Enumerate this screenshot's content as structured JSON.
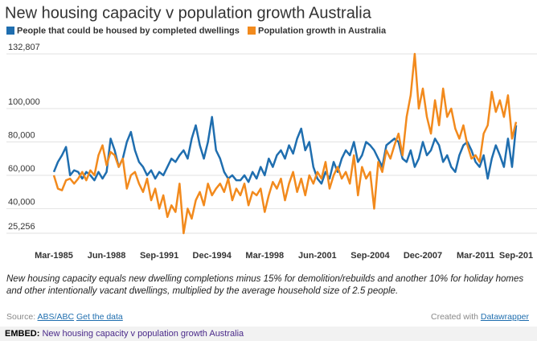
{
  "chart_data": {
    "type": "line",
    "title": "New housing capacity v population growth Australia",
    "categories": [
      "Mar-1985",
      null,
      null,
      null,
      null,
      null,
      null,
      null,
      null,
      null,
      null,
      null,
      null,
      "Jun-1988",
      null,
      null,
      null,
      null,
      null,
      null,
      null,
      null,
      null,
      null,
      null,
      null,
      "Sep-1991",
      null,
      null,
      null,
      null,
      null,
      null,
      null,
      null,
      null,
      null,
      null,
      null,
      "Dec-1994",
      null,
      null,
      null,
      null,
      null,
      null,
      null,
      null,
      null,
      null,
      null,
      null,
      "Mar-1998",
      null,
      null,
      null,
      null,
      null,
      null,
      null,
      null,
      null,
      null,
      null,
      null,
      "Jun-2001",
      null,
      null,
      null,
      null,
      null,
      null,
      null,
      null,
      null,
      null,
      null,
      null,
      "Sep-2004",
      null,
      null,
      null,
      null,
      null,
      null,
      null,
      null,
      null,
      null,
      null,
      null,
      "Dec-2007",
      null,
      null,
      null,
      null,
      null,
      null,
      null,
      null,
      null,
      null,
      null,
      null,
      "Mar-2011",
      null,
      null,
      null,
      null,
      null,
      null,
      null,
      null,
      null,
      "Sep-201"
    ],
    "series": [
      {
        "name": "People that could be housed by completed dwellings",
        "color": "#1f6eaf",
        "values": [
          62000,
          68000,
          72000,
          77000,
          60000,
          63000,
          62000,
          58000,
          62000,
          60000,
          57000,
          62000,
          58000,
          62000,
          82000,
          75000,
          65000,
          70000,
          80000,
          86000,
          75000,
          68000,
          65000,
          60000,
          63000,
          58000,
          62000,
          60000,
          65000,
          70000,
          68000,
          72000,
          75000,
          70000,
          82000,
          90000,
          78000,
          70000,
          80000,
          95000,
          75000,
          70000,
          62000,
          58000,
          60000,
          57000,
          57000,
          60000,
          56000,
          62000,
          58000,
          65000,
          60000,
          70000,
          65000,
          72000,
          75000,
          70000,
          78000,
          73000,
          82000,
          88000,
          75000,
          80000,
          65000,
          58000,
          55000,
          62000,
          58000,
          68000,
          62000,
          70000,
          75000,
          72000,
          80000,
          68000,
          72000,
          80000,
          78000,
          75000,
          70000,
          65000,
          78000,
          80000,
          82000,
          80000,
          70000,
          68000,
          75000,
          65000,
          70000,
          80000,
          72000,
          75000,
          82000,
          78000,
          68000,
          72000,
          65000,
          62000,
          72000,
          78000,
          80000,
          75000,
          68000,
          65000,
          72000,
          58000,
          70000,
          78000,
          72000,
          65000,
          82000,
          65000,
          90000
        ]
      },
      {
        "name": "Population growth in Australia",
        "color": "#f28a1d",
        "values": [
          60000,
          52000,
          51000,
          57000,
          58000,
          55000,
          58000,
          62000,
          57000,
          63000,
          60000,
          72000,
          78000,
          66000,
          74000,
          72000,
          65000,
          70000,
          52000,
          60000,
          62000,
          55000,
          50000,
          58000,
          45000,
          52000,
          40000,
          48000,
          35000,
          42000,
          38000,
          55000,
          25256,
          40000,
          34000,
          45000,
          50000,
          42000,
          55000,
          48000,
          52000,
          55000,
          50000,
          58000,
          45000,
          52000,
          48000,
          55000,
          42000,
          50000,
          48000,
          52000,
          38000,
          48000,
          56000,
          52000,
          58000,
          45000,
          55000,
          62000,
          50000,
          58000,
          48000,
          60000,
          55000,
          62000,
          58000,
          68000,
          52000,
          60000,
          65000,
          58000,
          62000,
          55000,
          72000,
          48000,
          65000,
          58000,
          62000,
          40000,
          68000,
          62000,
          75000,
          70000,
          78000,
          85000,
          72000,
          95000,
          108000,
          132807,
          100000,
          112000,
          95000,
          85000,
          105000,
          90000,
          112000,
          95000,
          100000,
          88000,
          82000,
          90000,
          78000,
          70000,
          72000,
          68000,
          85000,
          90000,
          110000,
          98000,
          105000,
          95000,
          108000,
          82000,
          92000
        ]
      }
    ],
    "ylim": [
      25256,
      132807
    ],
    "yticks": [
      {
        "value": 25256,
        "label": "25,256"
      },
      {
        "value": 40000,
        "label": "40,000"
      },
      {
        "value": 60000,
        "label": "60,000"
      },
      {
        "value": 80000,
        "label": "80,000"
      },
      {
        "value": 100000,
        "label": "100,000"
      },
      {
        "value": 132807,
        "label": "132,807"
      }
    ],
    "grid": true,
    "note": "New housing capacity equals new dwelling completions minus 15% for demolition/rebuilds and another 10% for holiday homes and other intentionally vacant dwellings, multiplied by the average household size of 2.5 people.",
    "source_label": "Source:",
    "source": "ABS/ABC",
    "get_data": "Get the data",
    "credit_label": "Created with",
    "credit": "Datawrapper",
    "embed_label": "EMBED:",
    "embed_title": "New housing capacity v population growth Australia"
  }
}
